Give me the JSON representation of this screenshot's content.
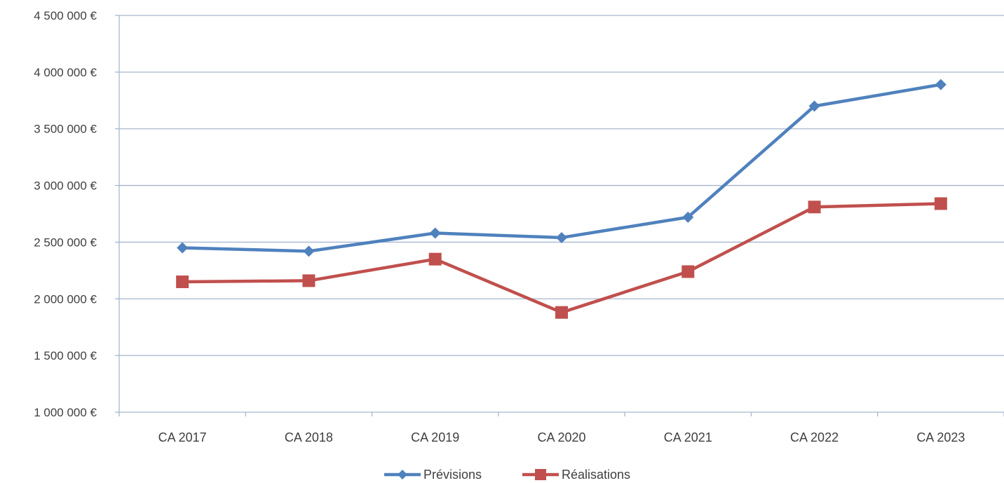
{
  "chart_data": {
    "type": "line",
    "title": "",
    "xlabel": "",
    "ylabel": "",
    "categories": [
      "CA 2017",
      "CA 2018",
      "CA 2019",
      "CA 2020",
      "CA 2021",
      "CA 2022",
      "CA 2023"
    ],
    "ylim": [
      1000000,
      4500000
    ],
    "yticks": [
      1000000,
      1500000,
      2000000,
      2500000,
      3000000,
      3500000,
      4000000,
      4500000
    ],
    "ytick_labels": [
      "1 000 000 €",
      "1 500 000 €",
      "2 000 000 €",
      "2 500 000 €",
      "3 000 000 €",
      "3 500 000 €",
      "4 000 000 €",
      "4 500 000 €"
    ],
    "grid": true,
    "legend_position": "bottom",
    "series": [
      {
        "name": "Prévisions",
        "color": "#4f81bd",
        "marker": "diamond",
        "values": [
          2450000,
          2420000,
          2580000,
          2540000,
          2720000,
          3700000,
          3890000
        ]
      },
      {
        "name": "Réalisations",
        "color": "#c0504d",
        "marker": "square",
        "values": [
          2150000,
          2160000,
          2350000,
          1880000,
          2240000,
          2810000,
          2840000
        ]
      }
    ]
  }
}
